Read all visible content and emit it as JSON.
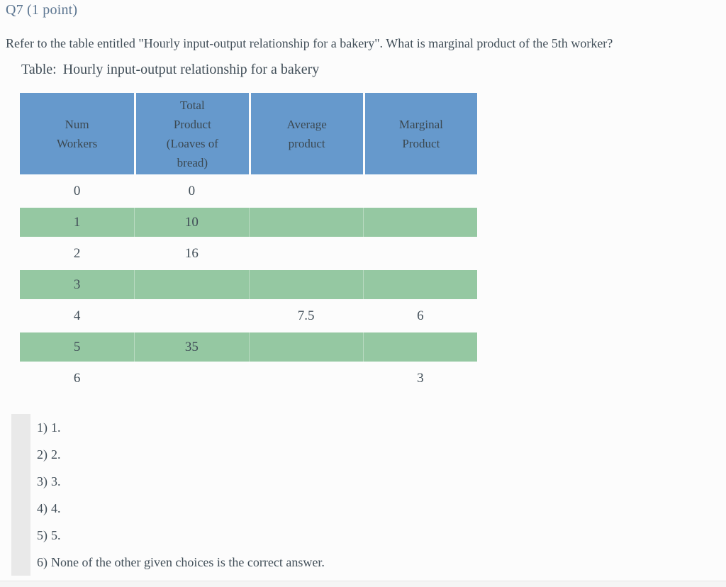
{
  "question": {
    "id_label": "Q7 (1 point)",
    "prompt": "Refer to the table entitled \"Hourly input-output relationship for a bakery\". What is marginal product of the 5th worker?"
  },
  "table": {
    "caption_prefix": "Table:",
    "caption_title": "Hourly input-output relationship for a bakery",
    "columns": [
      "Num\nWorkers",
      "Total\nProduct\n(Loaves of\nbread)",
      "Average\nproduct",
      "Marginal\nProduct"
    ],
    "rows": [
      [
        "0",
        "0",
        "",
        ""
      ],
      [
        "1",
        "10",
        "",
        ""
      ],
      [
        "2",
        "16",
        "",
        ""
      ],
      [
        "3",
        "",
        "",
        ""
      ],
      [
        "4",
        "",
        "7.5",
        "6"
      ],
      [
        "5",
        "35",
        "",
        ""
      ],
      [
        "6",
        "",
        "",
        "3"
      ]
    ]
  },
  "options": [
    {
      "label": "1)",
      "text": "1."
    },
    {
      "label": "2)",
      "text": "2."
    },
    {
      "label": "3)",
      "text": "3."
    },
    {
      "label": "4)",
      "text": "4."
    },
    {
      "label": "5)",
      "text": "5."
    },
    {
      "label": "6)",
      "text": "None of the other given choices is the correct answer."
    }
  ],
  "colors": {
    "header_bg": "#6699cc",
    "stripe_bg": "#95c8a2",
    "accent_text": "#5b7590",
    "body_text": "#414e58",
    "side_bar": "#e9e9e9"
  }
}
